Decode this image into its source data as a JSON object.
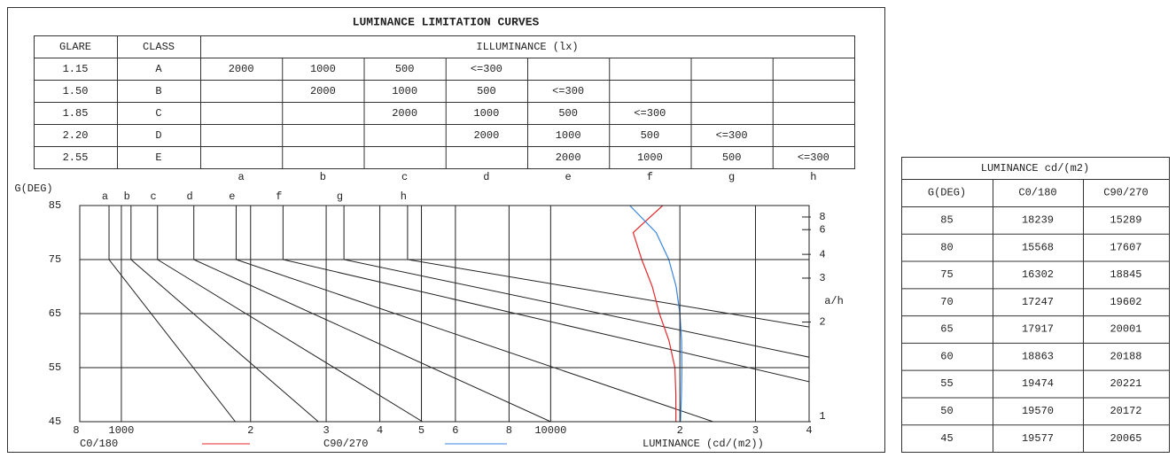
{
  "title": "LUMINANCE LIMITATION CURVES",
  "glare_table": {
    "headers": [
      "GLARE",
      "CLASS",
      "ILLUMINANCE (lx)"
    ],
    "rows": [
      {
        "glare": "1.15",
        "class": "A",
        "cells": [
          "2000",
          "1000",
          "500",
          "<=300",
          null,
          null,
          null,
          null
        ]
      },
      {
        "glare": "1.50",
        "class": "B",
        "cells": [
          null,
          "2000",
          "1000",
          "500",
          "<=300",
          null,
          null,
          null
        ]
      },
      {
        "glare": "1.85",
        "class": "C",
        "cells": [
          null,
          null,
          "2000",
          "1000",
          "500",
          "<=300",
          null,
          null
        ]
      },
      {
        "glare": "2.20",
        "class": "D",
        "cells": [
          null,
          null,
          null,
          "2000",
          "1000",
          "500",
          "<=300",
          null
        ]
      },
      {
        "glare": "2.55",
        "class": "E",
        "cells": [
          null,
          null,
          null,
          null,
          "2000",
          "1000",
          "500",
          "<=300"
        ]
      }
    ]
  },
  "chart_data": {
    "type": "line",
    "y_label": "G(DEG)",
    "x_label": "LUMINANCE (cd/(m2))",
    "right_label": "a/h",
    "xscale": "log",
    "xlim": [
      800,
      40000
    ],
    "ylim": [
      45,
      85
    ],
    "grid": true,
    "xticks": [
      {
        "value": 800,
        "label": "8"
      },
      1000,
      {
        "value": 2000,
        "label": "2"
      },
      {
        "value": 3000,
        "label": "3"
      },
      {
        "value": 4000,
        "label": "4"
      },
      {
        "value": 5000,
        "label": "5"
      },
      {
        "value": 6000,
        "label": "6"
      },
      {
        "value": 8000,
        "label": "8"
      },
      10000,
      {
        "value": 20000,
        "label": "2"
      },
      {
        "value": 30000,
        "label": "3"
      },
      {
        "value": 40000,
        "label": "4"
      }
    ],
    "yticks": [
      45,
      55,
      65,
      75,
      85
    ],
    "right_ticks": [
      1,
      2,
      3,
      4,
      6,
      8
    ],
    "curves": [
      {
        "name": "a",
        "x": [
          936,
          936,
          1843
        ],
        "y": [
          85,
          75,
          45
        ]
      },
      {
        "name": "b",
        "x": [
          1053,
          1053,
          2876
        ],
        "y": [
          85,
          75,
          45
        ]
      },
      {
        "name": "c",
        "x": [
          1214,
          1214,
          5030
        ],
        "y": [
          85,
          75,
          45
        ]
      },
      {
        "name": "d",
        "x": [
          1475,
          1475,
          10000
        ],
        "y": [
          85,
          75,
          45
        ]
      },
      {
        "name": "e",
        "x": [
          1851,
          1851,
          23900
        ],
        "y": [
          85,
          75,
          45
        ]
      },
      {
        "name": "f",
        "x": [
          2380,
          2380,
          100760
        ],
        "y": [
          85,
          75,
          45
        ]
      },
      {
        "name": "g",
        "x": [
          3300,
          3300,
          208000
        ],
        "y": [
          85,
          75,
          45
        ]
      },
      {
        "name": "h",
        "x": [
          4642,
          4642,
          824000
        ],
        "y": [
          85,
          75,
          45
        ]
      }
    ],
    "gamma": [
      85,
      80,
      75,
      70,
      65,
      60,
      55,
      50,
      45
    ],
    "series": [
      {
        "name": "C0/180",
        "color": "#e8262a",
        "values": [
          18239,
          15568,
          16302,
          17247,
          17917,
          18863,
          19474,
          19570,
          19577
        ]
      },
      {
        "name": "C90/270",
        "color": "#3a86e0",
        "values": [
          15289,
          17607,
          18845,
          19602,
          20001,
          20188,
          20221,
          20172,
          20065
        ]
      }
    ]
  },
  "luminance_table": {
    "title": "LUMINANCE cd/(m2)",
    "header": "G(DEG)"
  }
}
